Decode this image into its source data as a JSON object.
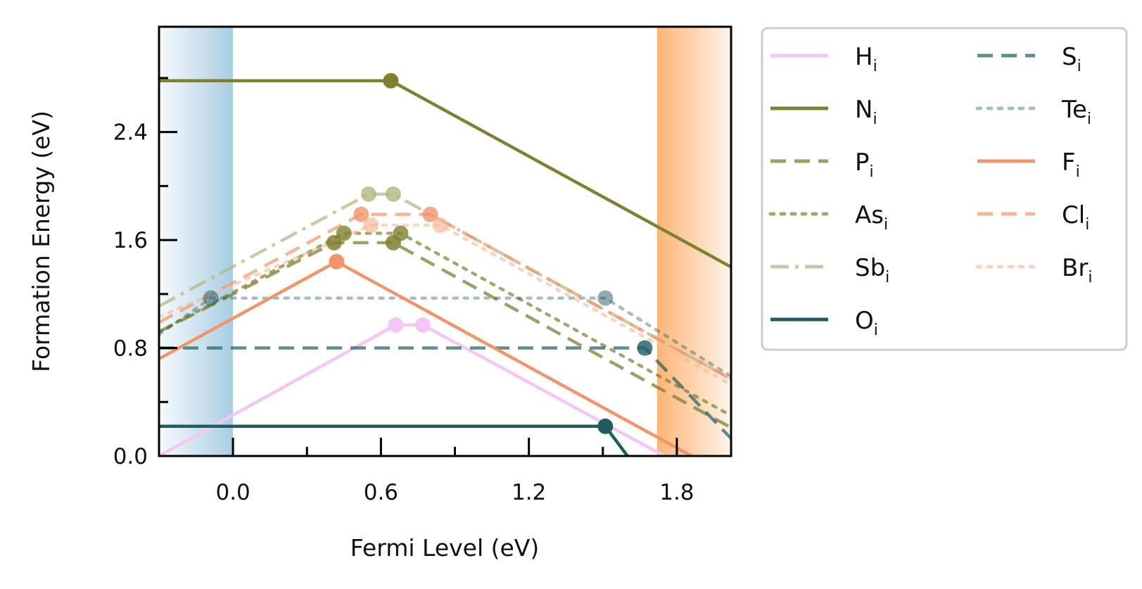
{
  "chart_data": {
    "type": "line",
    "title": "",
    "xlabel": "Fermi Level (eV)",
    "ylabel": "Formation Energy (eV)",
    "xlim": [
      -0.3,
      2.02
    ],
    "ylim": [
      0.0,
      3.18
    ],
    "x_ticks": [
      0.0,
      0.6,
      1.2,
      1.8
    ],
    "x_tick_labels": [
      "0.0",
      "0.6",
      "1.2",
      "1.8"
    ],
    "y_ticks": [
      0.0,
      0.8,
      1.6,
      2.4
    ],
    "y_tick_labels": [
      "0.0",
      "0.8",
      "1.6",
      "2.4"
    ],
    "grid": false,
    "shaded_regions": [
      {
        "x_start": -0.3,
        "x_end": 0.0,
        "color": "#a9cde4",
        "meaning": "valence band"
      },
      {
        "x_start": 1.72,
        "x_end": 2.02,
        "color": "#fdb576",
        "meaning": "conduction band"
      }
    ],
    "legend": {
      "placement": "outside right",
      "columns": 2,
      "entries": [
        {
          "base": "H",
          "sub": "i"
        },
        {
          "base": "N",
          "sub": "i"
        },
        {
          "base": "P",
          "sub": "i"
        },
        {
          "base": "As",
          "sub": "i"
        },
        {
          "base": "Sb",
          "sub": "i"
        },
        {
          "base": "O",
          "sub": "i"
        },
        {
          "base": "S",
          "sub": "i"
        },
        {
          "base": "Te",
          "sub": "i"
        },
        {
          "base": "F",
          "sub": "i"
        },
        {
          "base": "Cl",
          "sub": "i"
        },
        {
          "base": "Br",
          "sub": "i"
        }
      ]
    },
    "series": [
      {
        "name": "Hi",
        "color": "#f5c6f5",
        "dash": "solid",
        "opacity": 1.0,
        "points": [
          [
            -0.3,
            0.0
          ],
          [
            0.66,
            0.97
          ],
          [
            0.77,
            0.97
          ],
          [
            1.75,
            0.0
          ]
        ],
        "transitions": [
          [
            0.66,
            0.97
          ],
          [
            0.77,
            0.97
          ]
        ]
      },
      {
        "name": "Ni",
        "color": "#7f8031",
        "dash": "solid",
        "opacity": 1.0,
        "points": [
          [
            -0.3,
            2.78
          ],
          [
            0.64,
            2.78
          ],
          [
            2.02,
            1.4
          ]
        ],
        "transitions": [
          [
            0.64,
            2.78
          ]
        ]
      },
      {
        "name": "Pi",
        "color": "#7f8031",
        "dash": "dashed",
        "opacity": 0.75,
        "points": [
          [
            -0.3,
            0.92
          ],
          [
            0.41,
            1.58
          ],
          [
            0.65,
            1.58
          ],
          [
            1.72,
            0.51
          ],
          [
            2.02,
            0.21
          ]
        ],
        "transitions": [
          [
            0.41,
            1.58
          ],
          [
            0.65,
            1.58
          ]
        ]
      },
      {
        "name": "Asi",
        "color": "#7f8031",
        "dash": "dotted",
        "opacity": 0.7,
        "points": [
          [
            -0.3,
            0.92
          ],
          [
            0.45,
            1.65
          ],
          [
            0.68,
            1.65
          ],
          [
            1.72,
            0.6
          ],
          [
            2.02,
            0.3
          ]
        ],
        "transitions": [
          [
            0.45,
            1.65
          ],
          [
            0.68,
            1.65
          ]
        ]
      },
      {
        "name": "Sbi",
        "color": "#b3b580",
        "dash": "dashdot",
        "opacity": 0.7,
        "points": [
          [
            -0.3,
            1.11
          ],
          [
            0.55,
            1.94
          ],
          [
            0.65,
            1.94
          ],
          [
            1.72,
            0.87
          ],
          [
            2.02,
            0.57
          ]
        ],
        "transitions": [
          [
            0.55,
            1.94
          ],
          [
            0.65,
            1.94
          ]
        ]
      },
      {
        "name": "Oi",
        "color": "#1f5c5e",
        "dash": "solid",
        "opacity": 1.0,
        "points": [
          [
            -0.3,
            0.22
          ],
          [
            1.51,
            0.22
          ],
          [
            1.6,
            0.0
          ]
        ],
        "transitions": [
          [
            1.51,
            0.22
          ]
        ]
      },
      {
        "name": "Si",
        "color": "#1f5c5e",
        "dash": "dashed",
        "opacity": 0.7,
        "points": [
          [
            -0.3,
            0.8
          ],
          [
            1.67,
            0.8
          ],
          [
            2.02,
            0.13
          ]
        ],
        "transitions": [
          [
            1.67,
            0.8
          ]
        ]
      },
      {
        "name": "Tei",
        "color": "#1f5c5e",
        "dash": "dotted",
        "opacity": 0.4,
        "points": [
          [
            -0.3,
            0.9
          ],
          [
            -0.09,
            1.17
          ],
          [
            1.51,
            1.17
          ],
          [
            2.02,
            0.59
          ]
        ],
        "transitions": [
          [
            -0.09,
            1.17
          ],
          [
            1.51,
            1.17
          ]
        ]
      },
      {
        "name": "Fi",
        "color": "#f0956a",
        "dash": "solid",
        "opacity": 1.0,
        "points": [
          [
            -0.3,
            0.72
          ],
          [
            0.42,
            1.44
          ],
          [
            1.86,
            0.0
          ]
        ],
        "transitions": [
          [
            0.42,
            1.44
          ]
        ]
      },
      {
        "name": "Cli",
        "color": "#f0956a",
        "dash": "dashed",
        "opacity": 0.7,
        "points": [
          [
            -0.3,
            0.99
          ],
          [
            0.52,
            1.79
          ],
          [
            0.8,
            1.79
          ],
          [
            2.02,
            0.57
          ]
        ],
        "transitions": [
          [
            0.52,
            1.79
          ],
          [
            0.8,
            1.79
          ]
        ]
      },
      {
        "name": "Bri",
        "color": "#f7b89a",
        "dash": "dotted",
        "opacity": 0.6,
        "points": [
          [
            -0.3,
            1.03
          ],
          [
            0.56,
            1.71
          ],
          [
            0.84,
            1.71
          ],
          [
            2.02,
            0.53
          ]
        ],
        "transitions": [
          [
            0.56,
            1.71
          ],
          [
            0.84,
            1.71
          ]
        ]
      }
    ]
  }
}
